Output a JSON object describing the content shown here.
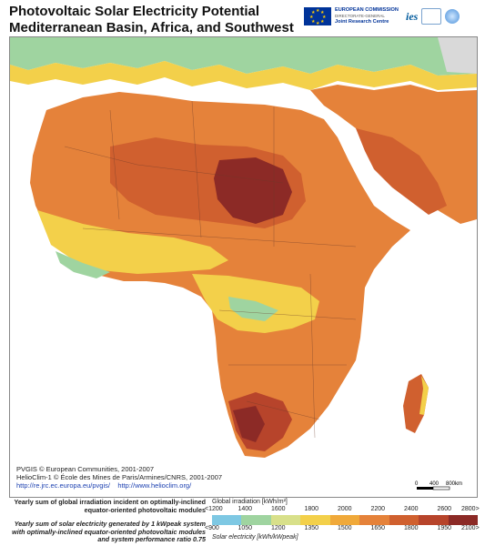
{
  "header": {
    "title_line1": "Photovoltaic Solar Electricity Potential",
    "title_line2": "Mediterranean Basin, Africa, and Southwest Asia"
  },
  "logos": {
    "ec_line1": "EUROPEAN COMMISSION",
    "ec_line2": "DIRECTORATE-GENERAL",
    "ec_line3": "Joint Research Centre",
    "ies": "ies"
  },
  "credits": {
    "line1": "PVGIS © European Communities, 2001-2007",
    "line2": "HelioClim-1 © École des Mines de Paris/Armines/CNRS, 2001-2007",
    "link1": "http://re.jrc.ec.europa.eu/pvgis/",
    "link2": "http://www.helioclim.org/"
  },
  "scale": {
    "labels": [
      "0",
      "400",
      "800km"
    ]
  },
  "legend": {
    "left_line1": "Yearly sum of global irradiation incident on optimally-inclined equator-oriented photovoltaic modules",
    "left_line2": "Yearly sum of solar electricity generated by 1 kWpeak system with optimally-inclined equator-oriented photovoltaic modules and system performance ratio 0.75",
    "top_title": "Global irradiation [kWh/m²]",
    "top_ticks": [
      "<1200",
      "1400",
      "1600",
      "1800",
      "2000",
      "2200",
      "2400",
      "2600",
      "2800>"
    ],
    "bottom_ticks": [
      "<900",
      "1050",
      "1200",
      "1350",
      "1500",
      "1650",
      "1800",
      "1950",
      "2100>"
    ],
    "bottom_title": "Solar electricity [kWh/kWpeak]",
    "colors": [
      "#7ec8e3",
      "#9fd4a0",
      "#d8e08a",
      "#f3d04a",
      "#f0a93a",
      "#e5823a",
      "#d0602f",
      "#b7442b",
      "#8c2a26"
    ]
  },
  "map_colors": {
    "sea": "#ffffff",
    "outside": "#d9d9d9",
    "low": "#7ec8e3",
    "green": "#9fd4a0",
    "yellowgreen": "#d8e08a",
    "yellow": "#f3d04a",
    "orange": "#e5823a",
    "redorange": "#d0602f",
    "red": "#b7442b",
    "darkred": "#8c2a26"
  }
}
